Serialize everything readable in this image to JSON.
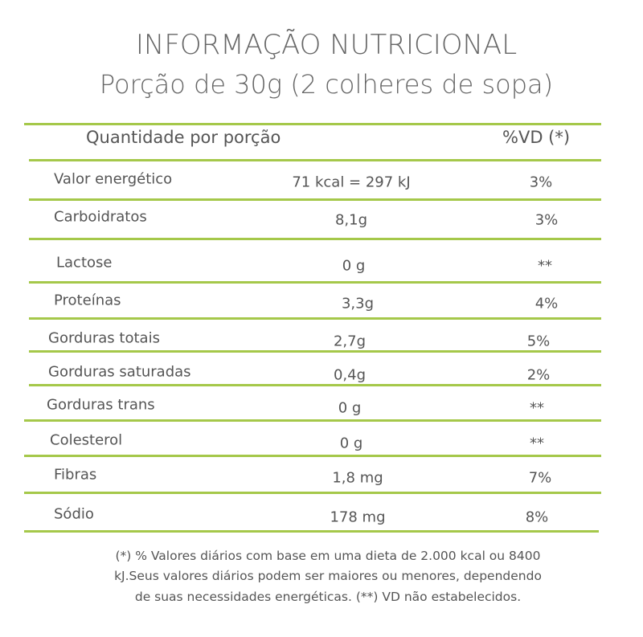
{
  "title": "INFORMAÇÃO NUTRICIONAL",
  "subtitle": "Porção de 30g (2 colheres de sopa)",
  "table": {
    "header_quantity": "Quantidade por porção",
    "header_vd": "%VD (*)",
    "rows": [
      {
        "label": "Valor energético",
        "value": "71 kcal = 297 kJ",
        "vd": "3%"
      },
      {
        "label": "Carboidratos",
        "value": "8,1g",
        "vd": "3%"
      },
      {
        "label": "Lactose",
        "value": "0 g",
        "vd": "**"
      },
      {
        "label": "Proteínas",
        "value": "3,3g",
        "vd": "4%"
      },
      {
        "label": "Gorduras totais",
        "value": "2,7g",
        "vd": "5%"
      },
      {
        "label": "Gorduras saturadas",
        "value": "0,4g",
        "vd": "2%"
      },
      {
        "label": "Gorduras trans",
        "value": "0 g",
        "vd": "**"
      },
      {
        "label": "Colesterol",
        "value": "0 g",
        "vd": "**"
      },
      {
        "label": "Fibras",
        "value": "1,8 mg",
        "vd": "7%"
      },
      {
        "label": "Sódio",
        "value": "178 mg",
        "vd": "8%"
      }
    ]
  },
  "footnote": [
    "(*) % Valores diários com base em uma dieta de 2.000 kcal ou 8400",
    "kJ.Seus valores diários podem ser maiores ou menores, dependendo",
    "de suas necessidades energéticas. (**) VD não estabelecidos."
  ],
  "colors": {
    "rule": "#a5c84a",
    "text": "#555555"
  }
}
